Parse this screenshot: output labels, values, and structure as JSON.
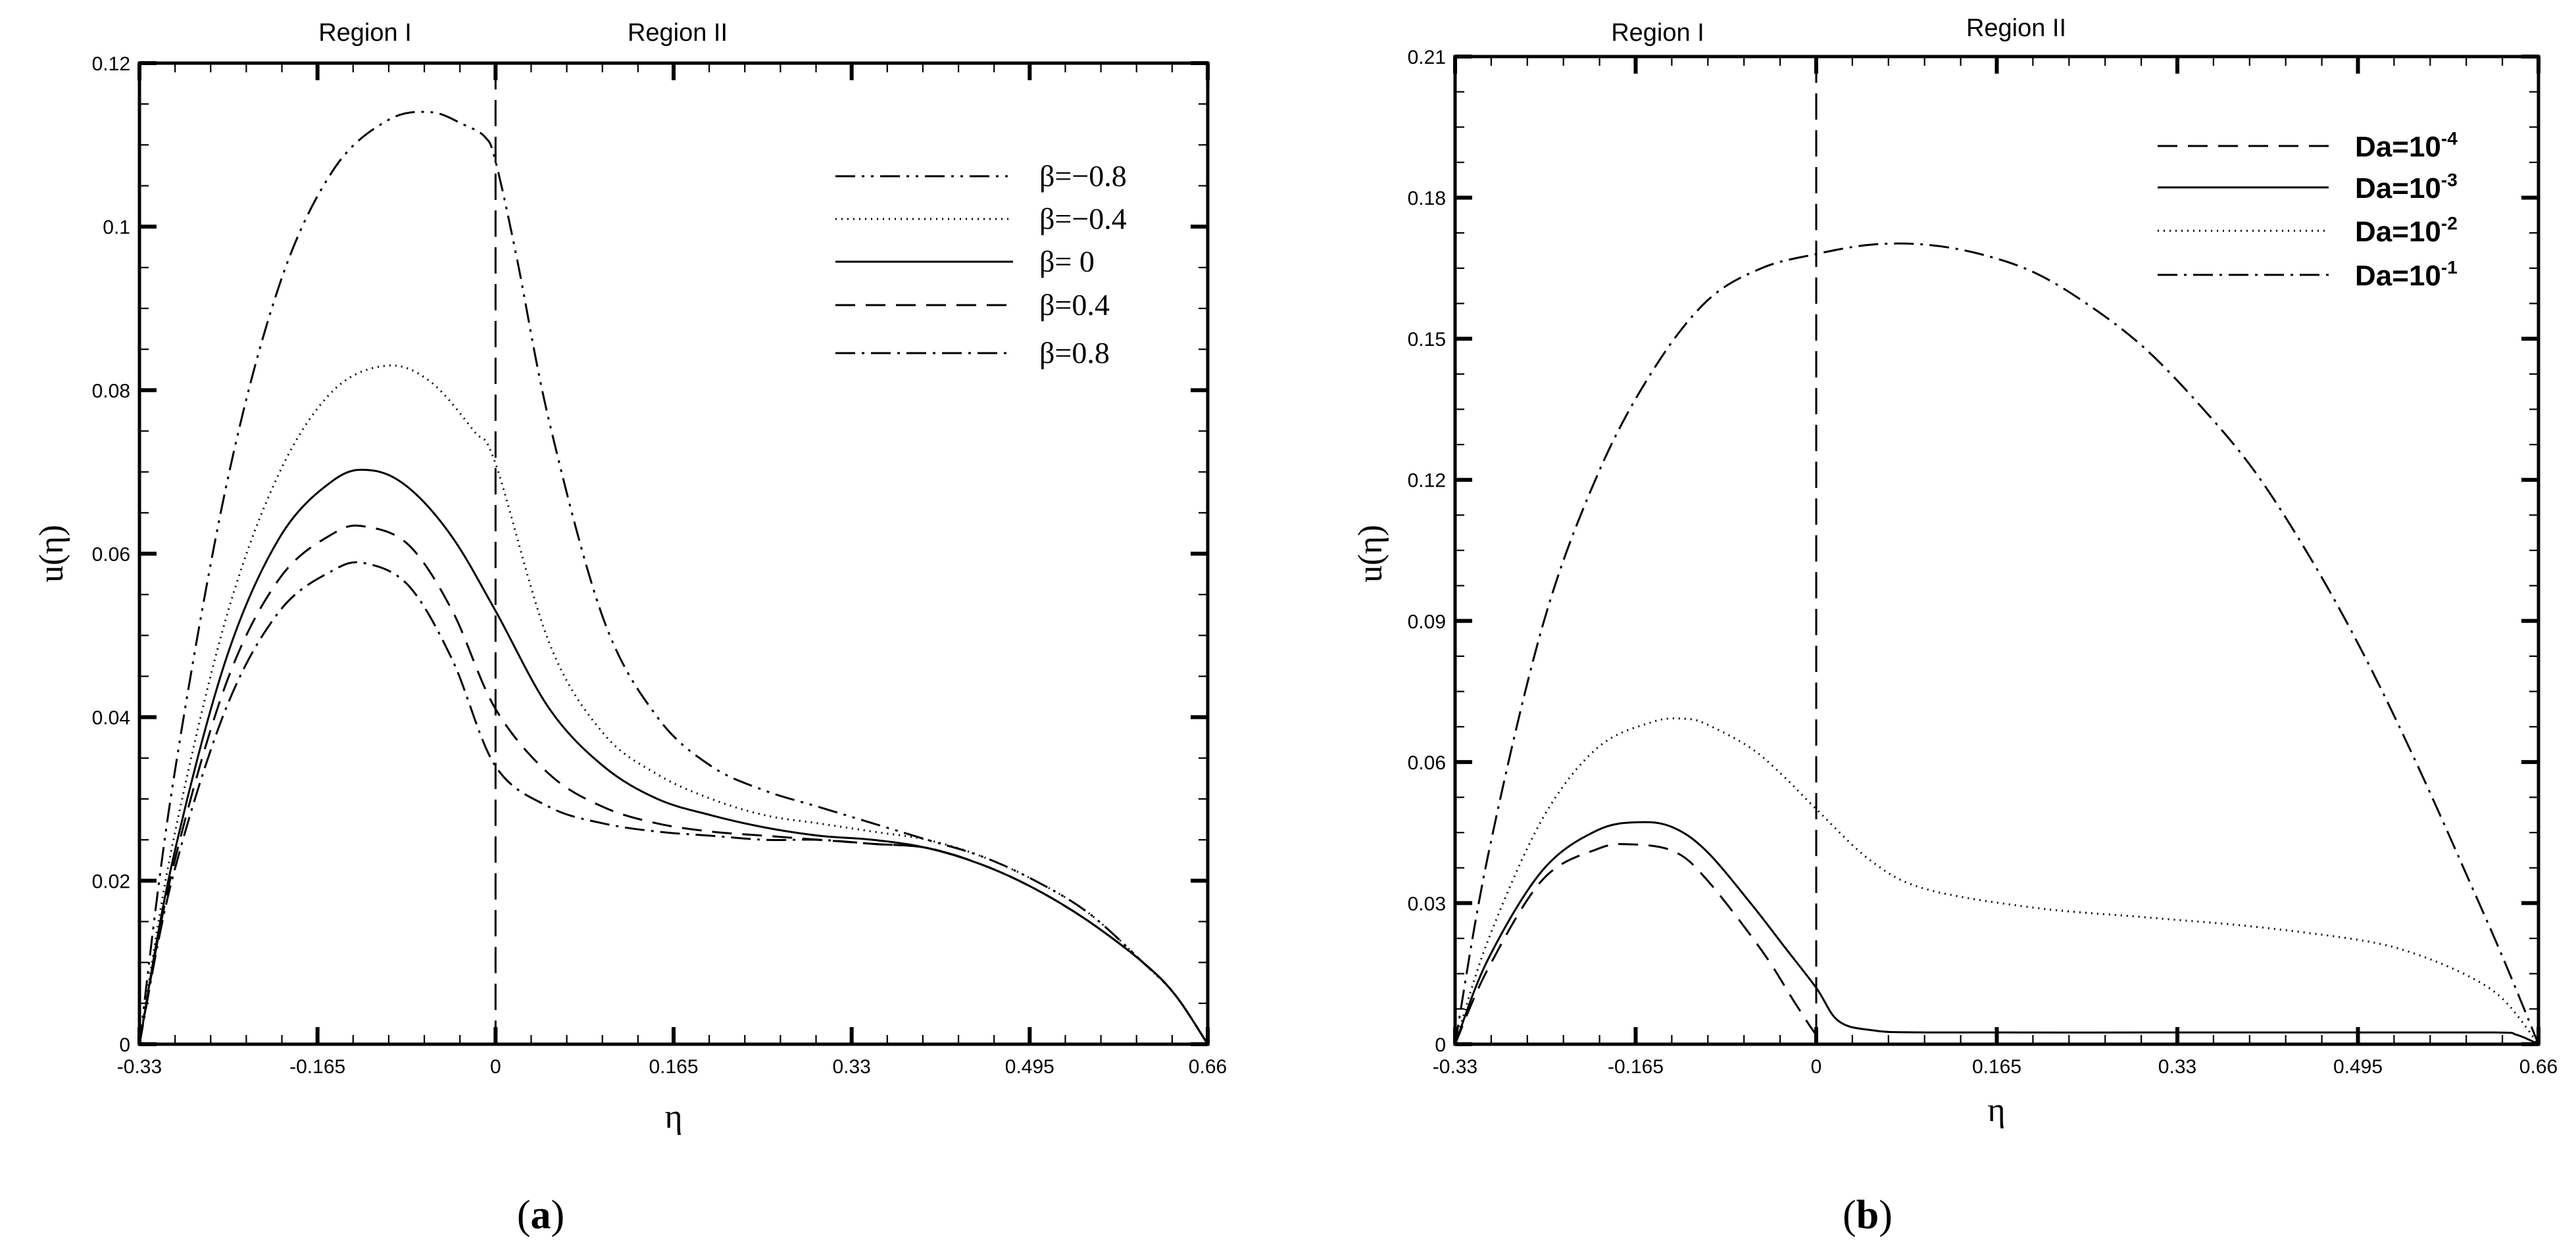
{
  "chart_data": [
    {
      "id": "a",
      "type": "line",
      "panel_label": {
        "open": "(",
        "letter": "a",
        "close": ")"
      },
      "xlabel": "η",
      "ylabel": "u(η)",
      "xlim": [
        -0.33,
        0.66
      ],
      "ylim": [
        0,
        0.12
      ],
      "xticks": [
        -0.33,
        -0.165,
        0,
        0.165,
        0.33,
        0.495,
        0.66
      ],
      "xtick_labels": [
        "-0.33",
        "-0.165",
        "0",
        "0.165",
        "0.33",
        "0.495",
        "0.66"
      ],
      "yticks": [
        0,
        0.02,
        0.04,
        0.06,
        0.08,
        0.1,
        0.12
      ],
      "ytick_labels": [
        "0",
        "0.02",
        "0.04",
        "0.06",
        "0.08",
        "0.1",
        "0.12"
      ],
      "x_minor_step": 0.033,
      "y_minor_step": 0.005,
      "regions": [
        "Region I",
        "Region II"
      ],
      "interface_x": 0,
      "legend_position": "top-right",
      "series": [
        {
          "name": "β=−0.8",
          "dash": "30 10 4 10 4 10",
          "x": [
            -0.33,
            -0.3,
            -0.25,
            -0.2,
            -0.15,
            -0.1,
            -0.06,
            -0.03,
            -0.01,
            0,
            0.02,
            0.05,
            0.1,
            0.15,
            0.2,
            0.25,
            0.3,
            0.35,
            0.4,
            0.45,
            0.5,
            0.55,
            0.6,
            0.63,
            0.66
          ],
          "y": [
            0,
            0.031,
            0.068,
            0.093,
            0.107,
            0.113,
            0.114,
            0.1125,
            0.111,
            0.108,
            0.096,
            0.076,
            0.052,
            0.04,
            0.034,
            0.031,
            0.029,
            0.027,
            0.025,
            0.023,
            0.02,
            0.016,
            0.01,
            0.006,
            0
          ]
        },
        {
          "name": "β=−0.4",
          "dash": "2 7",
          "x": [
            -0.33,
            -0.3,
            -0.25,
            -0.2,
            -0.15,
            -0.1,
            -0.06,
            -0.02,
            0,
            0.05,
            0.1,
            0.15,
            0.2,
            0.25,
            0.3,
            0.35,
            0.4,
            0.45,
            0.5,
            0.55,
            0.6,
            0.63,
            0.66
          ],
          "y": [
            0,
            0.024,
            0.052,
            0.07,
            0.08,
            0.083,
            0.081,
            0.075,
            0.071,
            0.049,
            0.038,
            0.033,
            0.03,
            0.028,
            0.027,
            0.026,
            0.025,
            0.023,
            0.02,
            0.016,
            0.01,
            0.006,
            0
          ]
        },
        {
          "name": "β= 0",
          "dash": "",
          "x": [
            -0.33,
            -0.3,
            -0.25,
            -0.2,
            -0.15,
            -0.115,
            -0.08,
            -0.04,
            0,
            0.05,
            0.1,
            0.15,
            0.2,
            0.25,
            0.3,
            0.35,
            0.4,
            0.45,
            0.5,
            0.55,
            0.6,
            0.63,
            0.66
          ],
          "y": [
            0,
            0.022,
            0.047,
            0.062,
            0.069,
            0.0702,
            0.068,
            0.062,
            0.053,
            0.041,
            0.034,
            0.03,
            0.028,
            0.0265,
            0.0255,
            0.025,
            0.024,
            0.022,
            0.019,
            0.015,
            0.01,
            0.006,
            0
          ]
        },
        {
          "name": "β=0.4",
          "dash": "30 16",
          "x": [
            -0.33,
            -0.3,
            -0.25,
            -0.2,
            -0.15,
            -0.12,
            -0.08,
            -0.04,
            0,
            0.05,
            0.1,
            0.15,
            0.2,
            0.25,
            0.3,
            0.35,
            0.4,
            0.45,
            0.5,
            0.55,
            0.6,
            0.63,
            0.66
          ],
          "y": [
            0,
            0.021,
            0.044,
            0.057,
            0.0625,
            0.0633,
            0.061,
            0.053,
            0.041,
            0.033,
            0.029,
            0.027,
            0.026,
            0.0255,
            0.025,
            0.0245,
            0.024,
            0.022,
            0.019,
            0.015,
            0.01,
            0.006,
            0
          ]
        },
        {
          "name": "β=0.8",
          "dash": "30 10 4 10",
          "x": [
            -0.33,
            -0.3,
            -0.25,
            -0.2,
            -0.15,
            -0.12,
            -0.08,
            -0.04,
            0,
            0.05,
            0.1,
            0.15,
            0.2,
            0.25,
            0.3,
            0.35,
            0.4,
            0.45,
            0.5,
            0.55,
            0.6,
            0.63,
            0.66
          ],
          "y": [
            0,
            0.02,
            0.041,
            0.053,
            0.058,
            0.0588,
            0.056,
            0.047,
            0.034,
            0.029,
            0.027,
            0.026,
            0.0255,
            0.025,
            0.025,
            0.0245,
            0.024,
            0.022,
            0.019,
            0.015,
            0.01,
            0.006,
            0
          ]
        }
      ]
    },
    {
      "id": "b",
      "type": "line",
      "panel_label": {
        "open": "(",
        "letter": "b",
        "close": ")"
      },
      "xlabel": "η",
      "ylabel": "u(η)",
      "xlim": [
        -0.33,
        0.66
      ],
      "ylim": [
        0,
        0.21
      ],
      "xticks": [
        -0.33,
        -0.165,
        0,
        0.165,
        0.33,
        0.495,
        0.66
      ],
      "xtick_labels": [
        "-0.33",
        "-0.165",
        "0",
        "0.165",
        "0.33",
        "0.495",
        "0.66"
      ],
      "yticks": [
        0,
        0.03,
        0.06,
        0.09,
        0.12,
        0.15,
        0.18,
        0.21
      ],
      "ytick_labels": [
        "0",
        "0.03",
        "0.06",
        "0.09",
        "0.12",
        "0.15",
        "0.18",
        "0.21"
      ],
      "x_minor_step": 0.033,
      "y_minor_step": 0.0075,
      "regions": [
        "Region I",
        "Region II"
      ],
      "interface_x": 0,
      "legend_position": "top-right",
      "series": [
        {
          "name": "Da=10⁻⁴",
          "legend_base": "Da=10",
          "legend_exp": "-4",
          "dash": "30 16",
          "x": [
            -0.33,
            -0.3,
            -0.25,
            -0.2,
            -0.17,
            -0.13,
            -0.1,
            -0.05,
            -0.02,
            0,
            0.01,
            0.03,
            0.1,
            0.3,
            0.5,
            0.62,
            0.66
          ],
          "y": [
            0,
            0.016,
            0.035,
            0.0415,
            0.0425,
            0.041,
            0.035,
            0.02,
            0.009,
            0.002,
            0,
            0,
            0,
            0,
            0,
            0,
            0
          ]
        },
        {
          "name": "Da=10⁻³",
          "legend_base": "Da=10",
          "legend_exp": "-3",
          "dash": "",
          "x": [
            -0.33,
            -0.3,
            -0.25,
            -0.2,
            -0.16,
            -0.13,
            -0.1,
            -0.06,
            -0.03,
            0,
            0.02,
            0.05,
            0.1,
            0.3,
            0.5,
            0.62,
            0.64,
            0.66
          ],
          "y": [
            0,
            0.018,
            0.037,
            0.0455,
            0.0472,
            0.046,
            0.041,
            0.03,
            0.021,
            0.012,
            0.005,
            0.003,
            0.0025,
            0.0025,
            0.0025,
            0.0025,
            0.002,
            0
          ]
        },
        {
          "name": "Da=10⁻²",
          "legend_base": "Da=10",
          "legend_exp": "-2",
          "dash": "2 7",
          "x": [
            -0.33,
            -0.3,
            -0.25,
            -0.2,
            -0.15,
            -0.12,
            -0.1,
            -0.06,
            -0.03,
            0,
            0.05,
            0.1,
            0.2,
            0.3,
            0.4,
            0.5,
            0.55,
            0.6,
            0.63,
            0.66
          ],
          "y": [
            0,
            0.022,
            0.048,
            0.063,
            0.0685,
            0.0692,
            0.068,
            0.063,
            0.057,
            0.05,
            0.039,
            0.033,
            0.029,
            0.027,
            0.025,
            0.022,
            0.019,
            0.014,
            0.009,
            0
          ]
        },
        {
          "name": "Da=10⁻¹",
          "legend_base": "Da=10",
          "legend_exp": "-1",
          "dash": "30 10 4 10",
          "x": [
            -0.33,
            -0.3,
            -0.25,
            -0.2,
            -0.15,
            -0.1,
            -0.05,
            0,
            0.05,
            0.1,
            0.15,
            0.2,
            0.25,
            0.3,
            0.35,
            0.4,
            0.45,
            0.5,
            0.55,
            0.6,
            0.63,
            0.66
          ],
          "y": [
            0,
            0.04,
            0.089,
            0.121,
            0.143,
            0.158,
            0.165,
            0.168,
            0.17,
            0.17,
            0.168,
            0.164,
            0.157,
            0.148,
            0.136,
            0.122,
            0.104,
            0.083,
            0.059,
            0.033,
            0.017,
            0
          ]
        }
      ]
    }
  ]
}
